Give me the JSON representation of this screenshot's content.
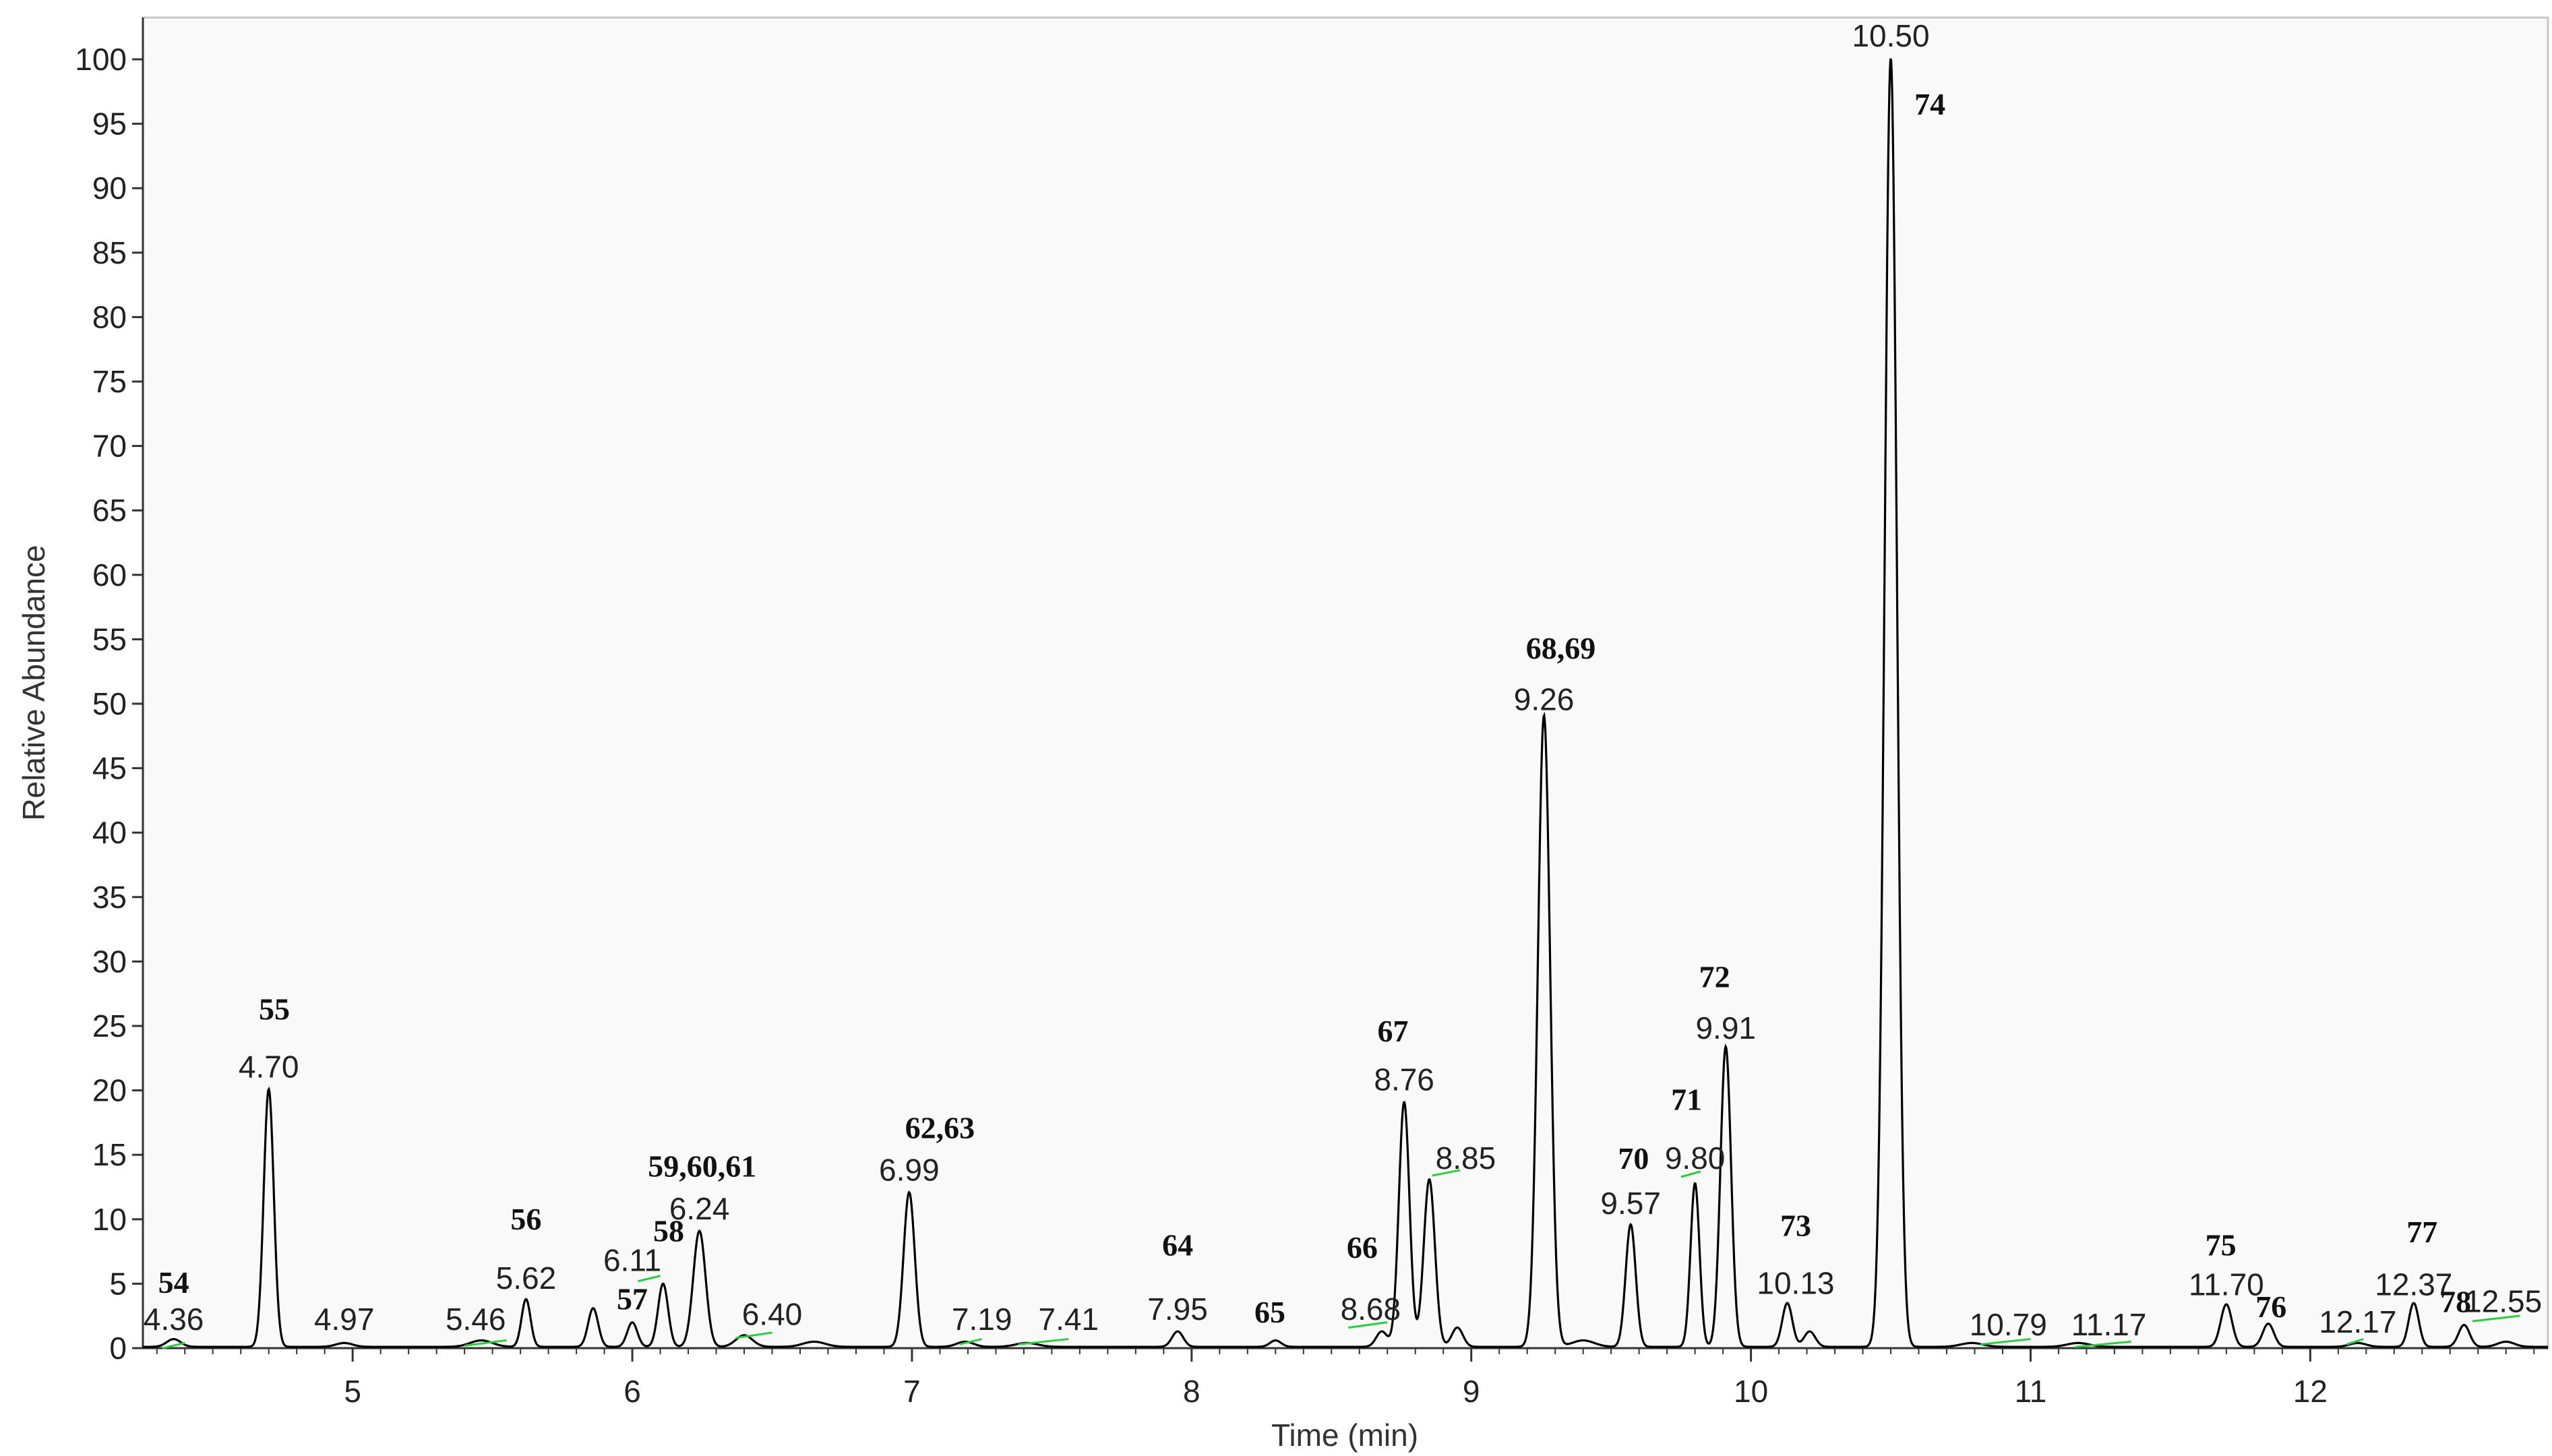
{
  "chart_data": {
    "type": "line",
    "title": "",
    "xlabel": "Time (min)",
    "ylabel": "Relative Abundance",
    "xlim": [
      4.25,
      12.85
    ],
    "ylim": [
      0,
      102
    ],
    "x_ticks": [
      5,
      6,
      7,
      8,
      9,
      10,
      11,
      12
    ],
    "y_ticks": [
      0,
      5,
      10,
      15,
      20,
      25,
      30,
      35,
      40,
      45,
      50,
      55,
      60,
      65,
      70,
      75,
      80,
      85,
      90,
      95,
      100
    ],
    "grid": false,
    "line_color": "#000000",
    "baseline_marker_color": "#2ecc40",
    "peaks": [
      {
        "rt": 4.36,
        "height": 0.6,
        "width": 0.025
      },
      {
        "rt": 4.7,
        "height": 20,
        "width": 0.018
      },
      {
        "rt": 4.97,
        "height": 0.3,
        "width": 0.03
      },
      {
        "rt": 5.46,
        "height": 0.5,
        "width": 0.04
      },
      {
        "rt": 5.62,
        "height": 3.7,
        "width": 0.016
      },
      {
        "rt": 5.86,
        "height": 3.0,
        "width": 0.018
      },
      {
        "rt": 6.0,
        "height": 1.9,
        "width": 0.018
      },
      {
        "rt": 6.11,
        "height": 4.9,
        "width": 0.018
      },
      {
        "rt": 6.24,
        "height": 9.0,
        "width": 0.022
      },
      {
        "rt": 6.4,
        "height": 0.9,
        "width": 0.03
      },
      {
        "rt": 6.65,
        "height": 0.4,
        "width": 0.04
      },
      {
        "rt": 6.99,
        "height": 12,
        "width": 0.02
      },
      {
        "rt": 7.19,
        "height": 0.4,
        "width": 0.03
      },
      {
        "rt": 7.41,
        "height": 0.3,
        "width": 0.04
      },
      {
        "rt": 7.95,
        "height": 1.2,
        "width": 0.02
      },
      {
        "rt": 8.3,
        "height": 0.5,
        "width": 0.02
      },
      {
        "rt": 8.68,
        "height": 1.2,
        "width": 0.02
      },
      {
        "rt": 8.76,
        "height": 19.0,
        "width": 0.019
      },
      {
        "rt": 8.85,
        "height": 13.0,
        "width": 0.02
      },
      {
        "rt": 8.95,
        "height": 1.5,
        "width": 0.02
      },
      {
        "rt": 9.26,
        "height": 49,
        "width": 0.022
      },
      {
        "rt": 9.4,
        "height": 0.5,
        "width": 0.04
      },
      {
        "rt": 9.57,
        "height": 9.5,
        "width": 0.018
      },
      {
        "rt": 9.8,
        "height": 12.7,
        "width": 0.016
      },
      {
        "rt": 9.91,
        "height": 23.3,
        "width": 0.019
      },
      {
        "rt": 10.13,
        "height": 3.4,
        "width": 0.018
      },
      {
        "rt": 10.21,
        "height": 1.2,
        "width": 0.02
      },
      {
        "rt": 10.5,
        "height": 100,
        "width": 0.022
      },
      {
        "rt": 10.79,
        "height": 0.3,
        "width": 0.04
      },
      {
        "rt": 11.17,
        "height": 0.3,
        "width": 0.04
      },
      {
        "rt": 11.7,
        "height": 3.3,
        "width": 0.02
      },
      {
        "rt": 11.85,
        "height": 1.8,
        "width": 0.02
      },
      {
        "rt": 12.17,
        "height": 0.3,
        "width": 0.03
      },
      {
        "rt": 12.37,
        "height": 3.4,
        "width": 0.018
      },
      {
        "rt": 12.55,
        "height": 1.7,
        "width": 0.02
      },
      {
        "rt": 12.7,
        "height": 0.4,
        "width": 0.03
      }
    ],
    "rt_labels": [
      {
        "text": "4.36",
        "x": 4.36,
        "y": 1.4
      },
      {
        "text": "4.70",
        "x": 4.7,
        "y": 21.0
      },
      {
        "text": "4.97",
        "x": 4.97,
        "y": 1.4
      },
      {
        "text": "5.46",
        "x": 5.44,
        "y": 1.4
      },
      {
        "text": "5.62",
        "x": 5.62,
        "y": 4.6
      },
      {
        "text": "6.11",
        "x": 6.0,
        "y": 6.0
      },
      {
        "text": "6.24",
        "x": 6.24,
        "y": 10.0
      },
      {
        "text": "6.40",
        "x": 6.5,
        "y": 1.8
      },
      {
        "text": "6.99",
        "x": 6.99,
        "y": 13.0
      },
      {
        "text": "7.19",
        "x": 7.25,
        "y": 1.4
      },
      {
        "text": "7.41",
        "x": 7.56,
        "y": 1.4
      },
      {
        "text": "7.95",
        "x": 7.95,
        "y": 2.2
      },
      {
        "text": "8.68",
        "x": 8.64,
        "y": 2.2
      },
      {
        "text": "8.76",
        "x": 8.76,
        "y": 20.0
      },
      {
        "text": "8.85",
        "x": 8.98,
        "y": 13.9
      },
      {
        "text": "9.26",
        "x": 9.26,
        "y": 49.5
      },
      {
        "text": "9.57",
        "x": 9.57,
        "y": 10.4
      },
      {
        "text": "9.80",
        "x": 9.8,
        "y": 13.9
      },
      {
        "text": "9.91",
        "x": 9.91,
        "y": 24.0
      },
      {
        "text": "10.13",
        "x": 10.16,
        "y": 4.2
      },
      {
        "text": "10.50",
        "x": 10.5,
        "y": 101.0
      },
      {
        "text": "10.79",
        "x": 10.92,
        "y": 1.0
      },
      {
        "text": "11.17",
        "x": 11.28,
        "y": 1.0
      },
      {
        "text": "11.70",
        "x": 11.7,
        "y": 4.1
      },
      {
        "text": "12.17",
        "x": 12.17,
        "y": 1.2
      },
      {
        "text": "12.37",
        "x": 12.37,
        "y": 4.1
      },
      {
        "text": "12.55",
        "x": 12.69,
        "y": 2.8
      }
    ],
    "peak_ids": [
      {
        "text": "54",
        "x": 4.36,
        "y": 4.3
      },
      {
        "text": "55",
        "x": 4.72,
        "y": 25.5
      },
      {
        "text": "56",
        "x": 5.62,
        "y": 9.2
      },
      {
        "text": "57",
        "x": 6.0,
        "y": 3.0
      },
      {
        "text": "58",
        "x": 6.13,
        "y": 8.3
      },
      {
        "text": "59,60,61",
        "x": 6.25,
        "y": 13.3
      },
      {
        "text": "62,63",
        "x": 7.1,
        "y": 16.3
      },
      {
        "text": "64",
        "x": 7.95,
        "y": 7.2
      },
      {
        "text": "65",
        "x": 8.28,
        "y": 2.0
      },
      {
        "text": "66",
        "x": 8.61,
        "y": 7.0
      },
      {
        "text": "67",
        "x": 8.72,
        "y": 23.8
      },
      {
        "text": "68,69",
        "x": 9.32,
        "y": 53.5
      },
      {
        "text": "70",
        "x": 9.58,
        "y": 13.9
      },
      {
        "text": "71",
        "x": 9.77,
        "y": 18.5
      },
      {
        "text": "72",
        "x": 9.87,
        "y": 28.0
      },
      {
        "text": "73",
        "x": 10.16,
        "y": 8.7
      },
      {
        "text": "74",
        "x": 10.64,
        "y": 95.7
      },
      {
        "text": "75",
        "x": 11.68,
        "y": 7.2
      },
      {
        "text": "76",
        "x": 11.86,
        "y": 2.4
      },
      {
        "text": "77",
        "x": 12.4,
        "y": 8.2
      },
      {
        "text": "78",
        "x": 12.52,
        "y": 2.8
      }
    ],
    "baseline_markers": [
      {
        "x1": 4.32,
        "x2": 4.4,
        "y": 0.2
      },
      {
        "x1": 5.4,
        "x2": 5.55,
        "y": 0.4
      },
      {
        "x1": 6.02,
        "x2": 6.1,
        "y": 5.4
      },
      {
        "x1": 6.37,
        "x2": 6.5,
        "y": 1.0
      },
      {
        "x1": 7.17,
        "x2": 7.25,
        "y": 0.5
      },
      {
        "x1": 7.38,
        "x2": 7.56,
        "y": 0.5
      },
      {
        "x1": 8.56,
        "x2": 8.7,
        "y": 1.8
      },
      {
        "x1": 8.86,
        "x2": 8.96,
        "y": 13.6
      },
      {
        "x1": 9.75,
        "x2": 9.82,
        "y": 13.5
      },
      {
        "x1": 10.82,
        "x2": 11.0,
        "y": 0.5
      },
      {
        "x1": 11.16,
        "x2": 11.36,
        "y": 0.3
      },
      {
        "x1": 12.13,
        "x2": 12.19,
        "y": 0.5
      },
      {
        "x1": 12.58,
        "x2": 12.75,
        "y": 2.3
      }
    ]
  }
}
